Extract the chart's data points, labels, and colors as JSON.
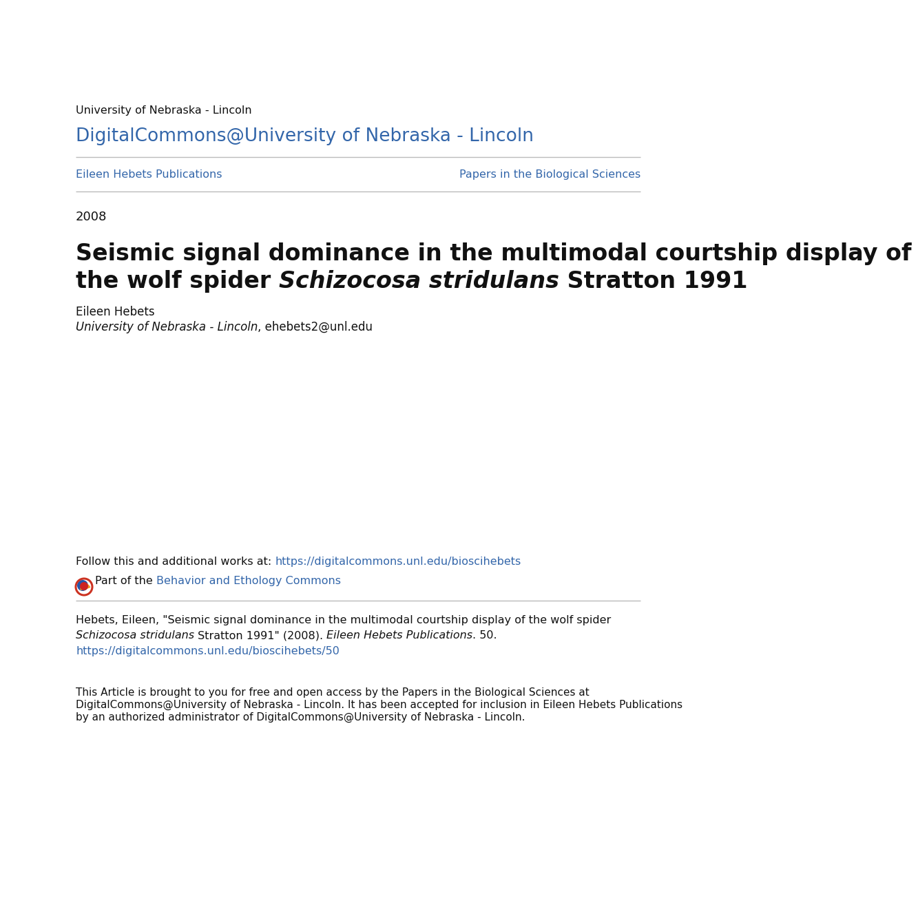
{
  "bg_color": "#ffffff",
  "line_color": "#bbbbbb",
  "blue_color": "#3366aa",
  "dark_color": "#111111",
  "institution_text": "University of Nebraska - Lincoln",
  "dc_link_text": "DigitalCommons@University of Nebraska - Lincoln",
  "left_link_text": "Eileen Hebets Publications",
  "right_link_text": "Papers in the Biological Sciences",
  "year_text": "2008",
  "title_line1": "Seismic signal dominance in the multimodal courtship display of",
  "title_line2_normal": "the wolf spider ",
  "title_line2_italic": "Schizocosa stridulans",
  "title_line2_end": " Stratton 1991",
  "author_name": "Eileen Hebets",
  "author_affil_italic": "University of Nebraska - Lincoln",
  "author_affil_normal": ", ehebets2@unl.edu",
  "follow_text_normal": "Follow this and additional works at: ",
  "follow_link": "https://digitalcommons.unl.edu/bioscihebets",
  "part_normal": "Part of the ",
  "part_link": "Behavior and Ethology Commons",
  "citation_line1": "Hebets, Eileen, \"Seismic signal dominance in the multimodal courtship display of the wolf spider",
  "citation_line2_italic": "Schizocosa stridulans",
  "citation_line2_normal": " Stratton 1991\" (2008). ",
  "citation_italic2": "Eileen Hebets Publications",
  "citation_end2": ". 50.",
  "citation_url": "https://digitalcommons.unl.edu/bioscihebets/50",
  "open_access_line1": "This Article is brought to you for free and open access by the Papers in the Biological Sciences at",
  "open_access_line2": "DigitalCommons@University of Nebraska - Lincoln. It has been accepted for inclusion in Eileen Hebets Publications",
  "open_access_line3": "by an authorized administrator of DigitalCommons@University of Nebraska - Lincoln."
}
